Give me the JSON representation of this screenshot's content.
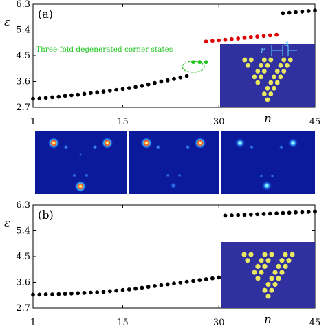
{
  "chart_data": [
    {
      "type": "scatter",
      "panel_label": "(a)",
      "ylabel": "ε",
      "xlabel": "n",
      "xlim": [
        1,
        45
      ],
      "ylim": [
        2.7,
        6.3
      ],
      "xticks": [
        "1",
        "15",
        "30",
        "45"
      ],
      "yticks": [
        "2.7",
        "3.6",
        "4.5",
        "5.4",
        "6.3"
      ],
      "grid": false,
      "series": [
        {
          "color": "#000000",
          "x": [
            1,
            2,
            3,
            4,
            5,
            6,
            7,
            8,
            9,
            10,
            11,
            12,
            13,
            14,
            15,
            16,
            17,
            18,
            19,
            20,
            21,
            22,
            23,
            24,
            25
          ],
          "y": [
            3.0,
            3.01,
            3.03,
            3.05,
            3.07,
            3.1,
            3.12,
            3.14,
            3.17,
            3.2,
            3.22,
            3.25,
            3.28,
            3.31,
            3.34,
            3.37,
            3.41,
            3.45,
            3.5,
            3.55,
            3.6,
            3.64,
            3.69,
            3.74,
            3.79
          ]
        },
        {
          "color": "#000000",
          "x": [
            26,
            27,
            28
          ],
          "y": [
            4.28,
            4.28,
            4.28
          ]
        },
        {
          "color": "#e00000",
          "x": [
            28,
            29,
            30,
            31,
            32,
            33,
            34,
            35,
            36,
            37,
            38,
            39
          ],
          "y": [
            5.0,
            5.02,
            5.04,
            5.06,
            5.08,
            5.1,
            5.13,
            5.15,
            5.17,
            5.19,
            5.21,
            5.23
          ]
        },
        {
          "color": "#000000",
          "x": [
            40,
            41,
            42,
            43,
            44,
            45
          ],
          "y": [
            5.98,
            6.0,
            6.02,
            6.04,
            6.06,
            6.08
          ]
        }
      ],
      "annotation": "Three-fold degenerated corner states",
      "inset_labels": [
        "r",
        "a"
      ]
    },
    {
      "type": "scatter",
      "panel_label": "(b)",
      "ylabel": "ε",
      "xlabel": "n",
      "xlim": [
        1,
        45
      ],
      "ylim": [
        2.7,
        6.3
      ],
      "xticks": [
        "1",
        "15",
        "30",
        "45"
      ],
      "yticks": [
        "2.7",
        "3.6",
        "4.5",
        "5.4",
        "6.3"
      ],
      "grid": false,
      "series": [
        {
          "color": "#000000",
          "x": [
            1,
            2,
            3,
            4,
            5,
            6,
            7,
            8,
            9,
            10,
            11,
            12,
            13,
            14,
            15,
            16,
            17,
            18,
            19,
            20,
            21,
            22,
            23,
            24,
            25,
            26,
            27,
            28,
            29,
            30
          ],
          "y": [
            3.17,
            3.17,
            3.18,
            3.18,
            3.19,
            3.2,
            3.21,
            3.22,
            3.23,
            3.24,
            3.25,
            3.27,
            3.29,
            3.31,
            3.33,
            3.35,
            3.38,
            3.41,
            3.44,
            3.47,
            3.5,
            3.53,
            3.56,
            3.59,
            3.62,
            3.65,
            3.68,
            3.71,
            3.74,
            3.77
          ]
        },
        {
          "color": "#000000",
          "x": [
            31,
            32,
            33,
            34,
            35,
            36,
            37,
            38,
            39,
            40,
            41,
            42,
            43,
            44,
            45
          ],
          "y": [
            5.93,
            5.94,
            5.95,
            5.96,
            5.97,
            5.98,
            5.99,
            6.0,
            6.01,
            6.02,
            6.03,
            6.04,
            6.05,
            6.06,
            6.07
          ]
        }
      ]
    }
  ],
  "colors": {
    "inset_bg": "#3030a0",
    "rod_fill": "#e8e860",
    "heatmap_bg": "#0a1a9a",
    "annotation": "#22c422"
  }
}
